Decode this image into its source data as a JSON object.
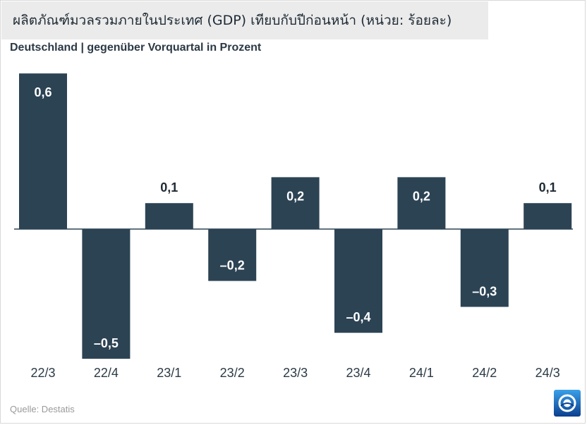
{
  "title": "ผลิตภัณฑ์มวลรวมภายในประเทศ (GDP) เทียบกับปีก่อนหน้า (หน่วย: ร้อยละ)",
  "subtitle": "Deutschland | gegenüber Vorquartal in Prozent",
  "source": "Quelle: Destatis",
  "colors": {
    "bar": "#2c4354",
    "axis": "#2c4354",
    "label_dark": "#1e2a34",
    "label_light": "#ffffff"
  },
  "logo_icon": "tagesschau-logo-icon",
  "chart_data": {
    "type": "bar",
    "categories": [
      "22/3",
      "22/4",
      "23/1",
      "23/2",
      "23/3",
      "23/4",
      "24/1",
      "24/2",
      "24/3"
    ],
    "values": [
      0.6,
      -0.5,
      0.1,
      -0.2,
      0.2,
      -0.4,
      0.2,
      -0.3,
      0.1
    ],
    "value_labels": [
      "0,6",
      "–0,5",
      "0,1",
      "–0,2",
      "0,2",
      "–0,4",
      "0,2",
      "–0,3",
      "0,1"
    ],
    "title": "ผลิตภัณฑ์มวลรวมภายในประเทศ (GDP) เทียบกับปีก่อนหน้า (หน่วย: ร้อยละ)",
    "subtitle": "Deutschland | gegenüber Vorquartal in Prozent",
    "xlabel": "",
    "ylabel": "",
    "ylim": [
      -0.5,
      0.6
    ],
    "grid": false,
    "legend": "none"
  }
}
